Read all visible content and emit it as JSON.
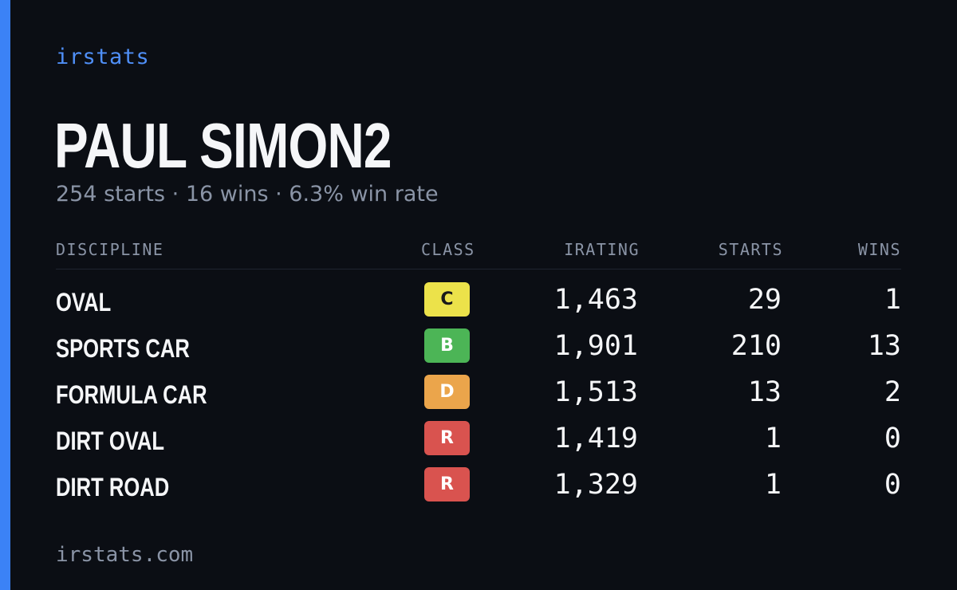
{
  "brand": "irstats",
  "driver": {
    "name": "PAUL SIMON2",
    "summary": "254 starts · 16 wins · 6.3% win rate"
  },
  "table": {
    "headers": {
      "discipline": "DISCIPLINE",
      "class": "CLASS",
      "irating": "IRATING",
      "starts": "STARTS",
      "wins": "WINS"
    },
    "rows": [
      {
        "discipline": "OVAL",
        "class": "C",
        "class_color": "#ece24a",
        "class_text_color": "#1a1a1a",
        "irating": "1,463",
        "starts": "29",
        "wins": "1"
      },
      {
        "discipline": "SPORTS CAR",
        "class": "B",
        "class_color": "#4cb556",
        "class_text_color": "#ffffff",
        "irating": "1,901",
        "starts": "210",
        "wins": "13"
      },
      {
        "discipline": "FORMULA CAR",
        "class": "D",
        "class_color": "#eba54b",
        "class_text_color": "#ffffff",
        "irating": "1,513",
        "starts": "13",
        "wins": "2"
      },
      {
        "discipline": "DIRT OVAL",
        "class": "R",
        "class_color": "#d9534f",
        "class_text_color": "#ffffff",
        "irating": "1,419",
        "starts": "1",
        "wins": "0"
      },
      {
        "discipline": "DIRT ROAD",
        "class": "R",
        "class_color": "#d9534f",
        "class_text_color": "#ffffff",
        "irating": "1,329",
        "starts": "1",
        "wins": "0"
      }
    ]
  },
  "footer": "irstats.com",
  "colors": {
    "background": "#0b0e14",
    "accent": "#3b82f6",
    "brand_text": "#4f8ff7",
    "muted_text": "#8a94a6",
    "primary_text": "#f5f6f8"
  }
}
